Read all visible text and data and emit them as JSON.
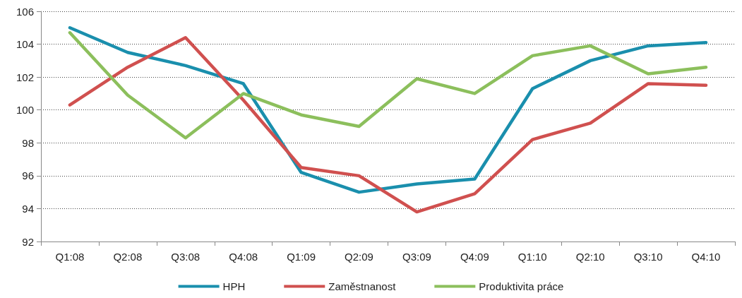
{
  "chart_data": {
    "type": "line",
    "categories": [
      "Q1:08",
      "Q2:08",
      "Q3:08",
      "Q4:08",
      "Q1:09",
      "Q2:09",
      "Q3:09",
      "Q4:09",
      "Q1:10",
      "Q2:10",
      "Q3:10",
      "Q4:10"
    ],
    "series": [
      {
        "name": "HPH",
        "color": "#1a8fad",
        "values": [
          105.0,
          103.5,
          102.7,
          101.6,
          96.2,
          95.0,
          95.5,
          95.8,
          101.3,
          103.0,
          103.9,
          104.1
        ]
      },
      {
        "name": "Zaměstnanost",
        "color": "#d0504f",
        "values": [
          100.3,
          102.6,
          104.4,
          100.6,
          96.5,
          96.0,
          93.8,
          94.9,
          98.2,
          99.2,
          101.6,
          101.5
        ]
      },
      {
        "name": "Produktivita práce",
        "color": "#8cbf5c",
        "values": [
          104.7,
          100.9,
          98.3,
          101.0,
          99.7,
          99.0,
          101.9,
          101.0,
          103.3,
          103.9,
          102.2,
          102.6
        ]
      }
    ],
    "ylim": [
      92,
      106
    ],
    "yticks": [
      92,
      94,
      96,
      98,
      100,
      102,
      104,
      106
    ],
    "grid": "y",
    "legend": "bottom",
    "marker": "none",
    "line_style": "solid"
  }
}
